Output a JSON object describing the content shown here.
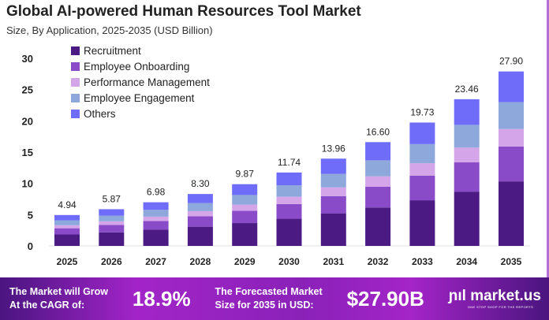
{
  "chart_data": {
    "type": "bar",
    "stacked": true,
    "title": "Global AI-powered Human Resources Tool Market",
    "subtitle": "Size, By Application, 2025-2035 (USD Billion)",
    "categories": [
      "2025",
      "2026",
      "2027",
      "2028",
      "2029",
      "2030",
      "2031",
      "2032",
      "2033",
      "2034",
      "2035"
    ],
    "ylim": [
      0,
      30
    ],
    "yticks": [
      0,
      5,
      10,
      15,
      20,
      25,
      30
    ],
    "grid": false,
    "legend_position": "top-left",
    "totals": [
      "4.94",
      "5.87",
      "6.98",
      "8.30",
      "9.87",
      "11.74",
      "13.96",
      "16.60",
      "19.73",
      "23.46",
      "27.90"
    ],
    "series": [
      {
        "name": "Recruitment",
        "color": "#4b1a82",
        "values": [
          1.83,
          2.17,
          2.58,
          3.07,
          3.65,
          4.34,
          5.17,
          6.14,
          7.3,
          8.68,
          10.32
        ]
      },
      {
        "name": "Employee Onboarding",
        "color": "#8a4bc8",
        "values": [
          0.99,
          1.17,
          1.4,
          1.66,
          1.97,
          2.35,
          2.79,
          3.32,
          3.95,
          4.69,
          5.58
        ]
      },
      {
        "name": "Performance Management",
        "color": "#d4a5e8",
        "values": [
          0.49,
          0.59,
          0.7,
          0.83,
          0.99,
          1.17,
          1.4,
          1.66,
          1.97,
          2.35,
          2.79
        ]
      },
      {
        "name": "Employee Engagement",
        "color": "#8fa8db",
        "values": [
          0.77,
          0.91,
          1.08,
          1.29,
          1.53,
          1.82,
          2.16,
          2.57,
          3.06,
          3.64,
          4.32
        ]
      },
      {
        "name": "Others",
        "color": "#6e6cf8",
        "values": [
          0.86,
          1.03,
          1.22,
          1.45,
          1.73,
          2.06,
          2.44,
          2.91,
          3.45,
          4.1,
          4.89
        ]
      }
    ]
  },
  "footer": {
    "cagr_text_1": "The Market will Grow",
    "cagr_text_2": "At the CAGR of:",
    "cagr_value": "18.9%",
    "forecast_text_1": "The Forecasted Market",
    "forecast_text_2": "Size for 2035 in USD:",
    "forecast_value": "$27.90B",
    "logo": "market.us",
    "tagline": "ONE STOP SHOP FOR THE REPORTS"
  }
}
